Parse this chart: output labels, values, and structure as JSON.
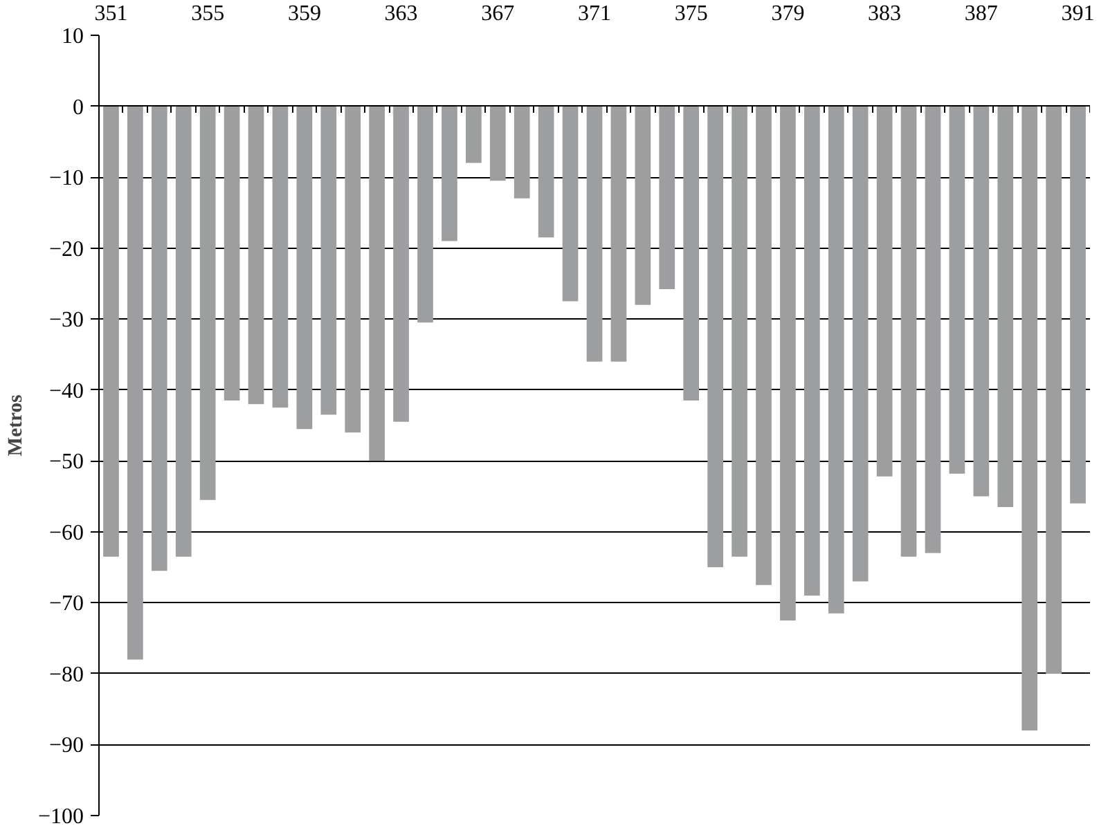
{
  "chart_data": {
    "type": "bar",
    "ylabel": "Metros",
    "categories": [
      "351",
      null,
      null,
      null,
      "355",
      null,
      null,
      null,
      "359",
      null,
      null,
      null,
      "363",
      null,
      null,
      null,
      "367",
      null,
      null,
      null,
      "371",
      null,
      null,
      null,
      "375",
      null,
      null,
      null,
      "379",
      null,
      null,
      null,
      "383",
      null,
      null,
      null,
      "387",
      null,
      null,
      null,
      "391"
    ],
    "values": [
      -63.5,
      -78,
      -65.5,
      -63.5,
      -55.5,
      -41.5,
      -42,
      -42.5,
      -45.5,
      -43.5,
      -46,
      -50,
      -44.5,
      -30.5,
      -19,
      -8,
      -10.5,
      -13,
      -18.5,
      -27.5,
      -36,
      -36,
      -28,
      -25.8,
      -41.5,
      -65,
      -63.5,
      -67.5,
      -72.5,
      -69,
      -71.5,
      -67,
      -52.2,
      -63.5,
      -63,
      -51.8,
      -55,
      -56.5,
      -88,
      -80,
      -56
    ],
    "color": "#9d9ea0",
    "ylim": [
      -100,
      10
    ],
    "yticks": [
      -100,
      -90,
      -80,
      -70,
      -60,
      -50,
      -40,
      -30,
      -20,
      -10,
      0,
      10
    ],
    "grid": "y"
  }
}
